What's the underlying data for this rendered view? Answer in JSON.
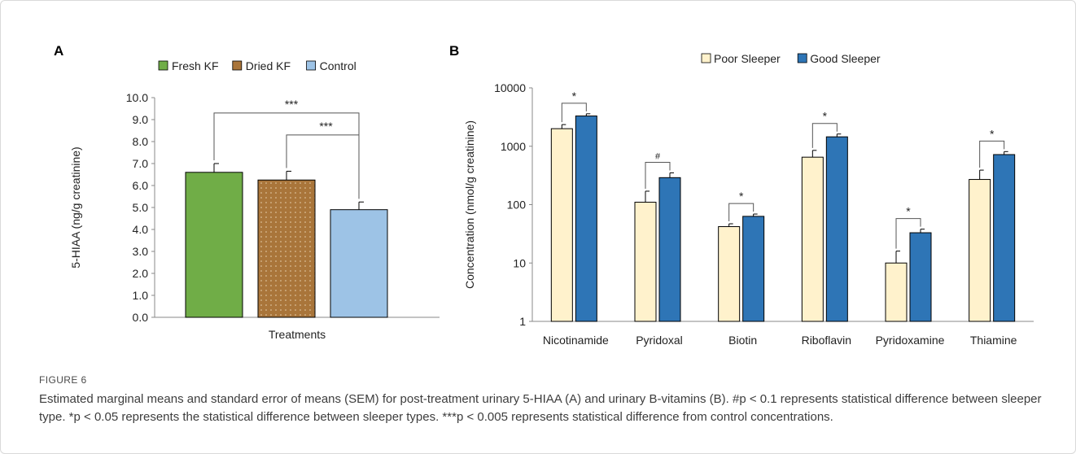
{
  "figure": {
    "label": "FIGURE 6",
    "caption": "Estimated marginal means and standard error of means (SEM) for post-treatment urinary 5-HIAA (A) and urinary B-vitamins (B). #p < 0.1 represents statistical difference between sleeper type. *p < 0.05 represents the statistical difference between sleeper types. ***p < 0.005 represents statistical difference from control concentrations."
  },
  "colors": {
    "fresh_kf": "#70ad47",
    "dried_kf": "#a9753a",
    "control": "#9dc3e6",
    "poor_sleeper": "#fff2cc",
    "good_sleeper": "#2e75b6",
    "axis": "#888888",
    "text": "#222222"
  },
  "chart_data": [
    {
      "panel": "A",
      "type": "bar",
      "title": "",
      "xlabel": "Treatments",
      "ylabel": "5-HIAA (ng/g creatinine)",
      "ylim": [
        0,
        10
      ],
      "yticks": [
        "0.0",
        "1.0",
        "2.0",
        "3.0",
        "4.0",
        "5.0",
        "6.0",
        "7.0",
        "8.0",
        "9.0",
        "10.0"
      ],
      "legend_position": "top",
      "grid": false,
      "series": [
        {
          "name": "Fresh KF",
          "value": 6.6,
          "error": 0.4
        },
        {
          "name": "Dried KF",
          "value": 6.25,
          "error": 0.4
        },
        {
          "name": "Control",
          "value": 4.9,
          "error": 0.35
        }
      ],
      "annotations": [
        {
          "from": "Fresh KF",
          "to": "Control",
          "label": "***"
        },
        {
          "from": "Dried KF",
          "to": "Control",
          "label": "***"
        }
      ]
    },
    {
      "panel": "B",
      "type": "bar",
      "title": "",
      "xlabel": "",
      "ylabel": "Concentration (nmol/g creatinine)",
      "yscale": "log",
      "ylim": [
        1,
        10000
      ],
      "yticks": [
        "1",
        "10",
        "100",
        "1000",
        "10000"
      ],
      "legend_position": "top",
      "grid": false,
      "categories": [
        "Nicotinamide",
        "Pyridoxal",
        "Biotin",
        "Riboflavin",
        "Pyridoxamine",
        "Thiamine"
      ],
      "series": [
        {
          "name": "Poor Sleeper",
          "values": [
            2000,
            110,
            42,
            650,
            10,
            270
          ],
          "error_upper": [
            2350,
            170,
            47,
            850,
            16,
            390
          ]
        },
        {
          "name": "Good Sleeper",
          "values": [
            3300,
            290,
            63,
            1450,
            33,
            720
          ],
          "error_upper": [
            3600,
            350,
            69,
            1620,
            38,
            810
          ]
        }
      ],
      "significance": [
        "*",
        "#",
        "*",
        "*",
        "*",
        "*"
      ]
    }
  ]
}
